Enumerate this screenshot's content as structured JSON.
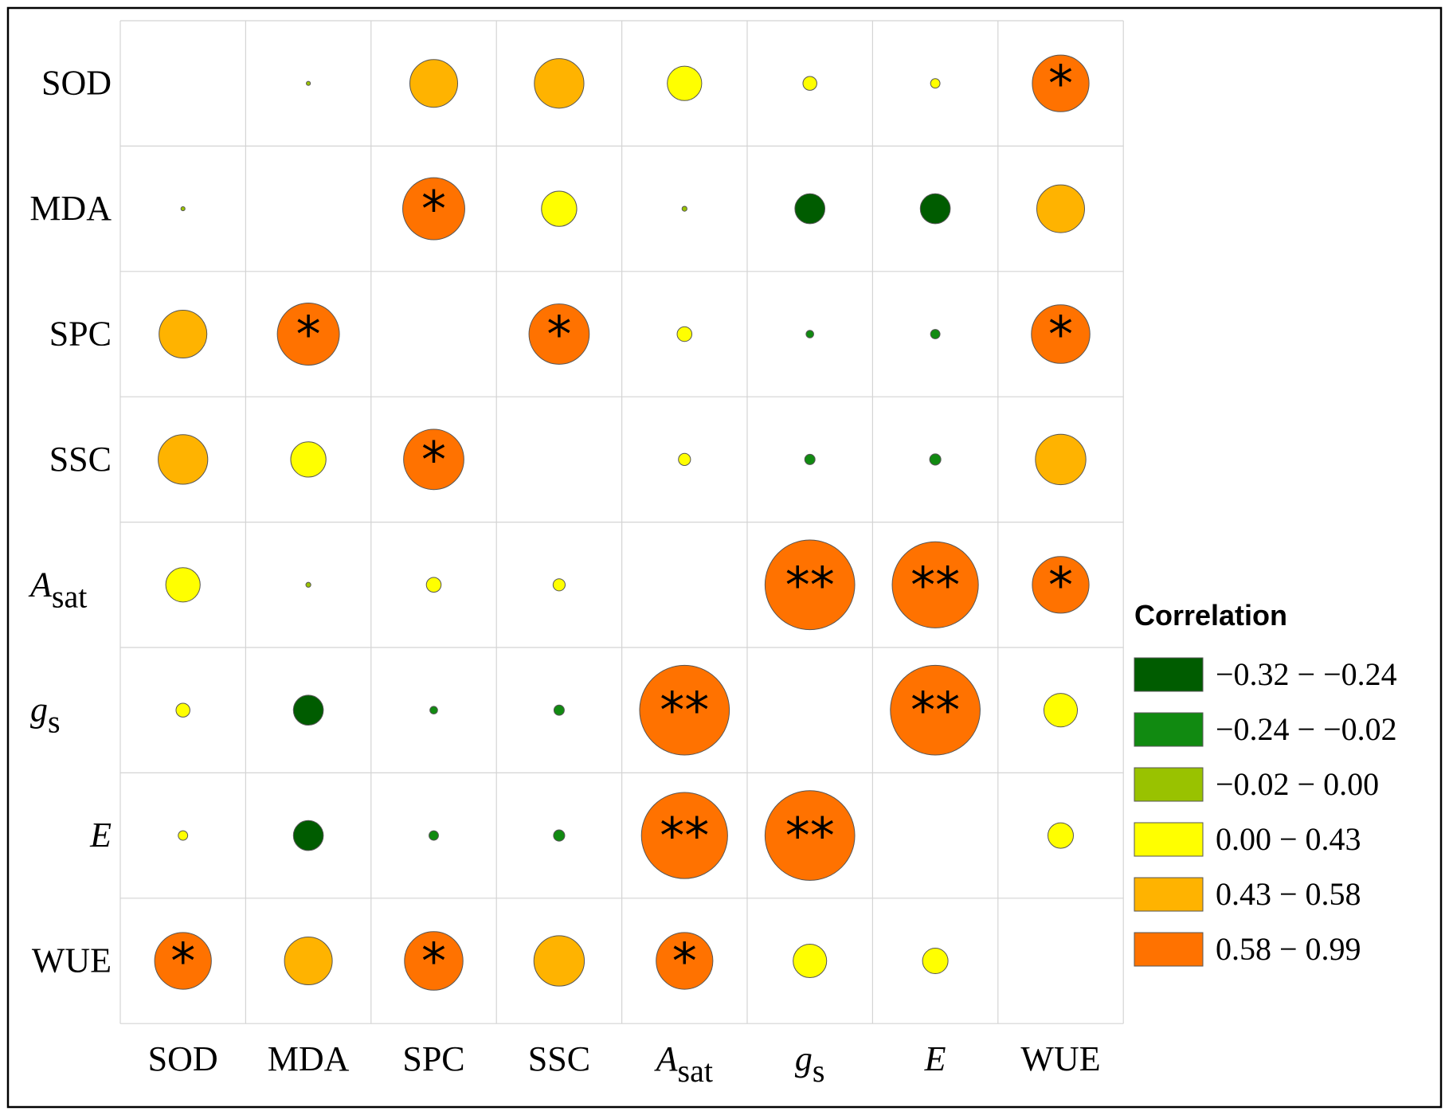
{
  "chart_data": {
    "type": "heatmap",
    "variables": [
      {
        "base": "SOD",
        "sub": "",
        "italic": false
      },
      {
        "base": "MDA",
        "sub": "",
        "italic": false
      },
      {
        "base": "SPC",
        "sub": "",
        "italic": false
      },
      {
        "base": "SSC",
        "sub": "",
        "italic": false
      },
      {
        "base": "A",
        "sub": "sat",
        "italic": true
      },
      {
        "base": "g",
        "sub": "s",
        "italic": true
      },
      {
        "base": "E",
        "sub": "",
        "italic": true
      },
      {
        "base": "WUE",
        "sub": "",
        "italic": false
      }
    ],
    "matrix": [
      [
        null,
        -0.01,
        0.5,
        0.52,
        0.35,
        0.12,
        0.07,
        0.6
      ],
      [
        -0.01,
        null,
        0.66,
        0.36,
        -0.02,
        -0.3,
        -0.3,
        0.5
      ],
      [
        0.5,
        0.66,
        null,
        0.64,
        0.13,
        -0.05,
        -0.07,
        0.62
      ],
      [
        0.52,
        0.36,
        0.64,
        null,
        0.1,
        -0.08,
        -0.09,
        0.53
      ],
      [
        0.35,
        -0.02,
        0.13,
        0.1,
        null,
        0.97,
        0.93,
        0.6
      ],
      [
        0.12,
        -0.3,
        -0.05,
        -0.08,
        0.97,
        null,
        0.97,
        0.34
      ],
      [
        0.07,
        -0.3,
        -0.07,
        -0.09,
        0.93,
        0.97,
        null,
        0.25
      ],
      [
        0.6,
        0.5,
        0.62,
        0.53,
        0.6,
        0.34,
        0.25,
        null
      ]
    ],
    "significance": [
      [
        "",
        "",
        "",
        "",
        "",
        "",
        "",
        "*"
      ],
      [
        "",
        "",
        "*",
        "",
        "",
        "",
        "",
        ""
      ],
      [
        "",
        "*",
        "",
        "*",
        "",
        "",
        "",
        "*"
      ],
      [
        "",
        "",
        "*",
        "",
        "",
        "",
        "",
        ""
      ],
      [
        "",
        "",
        "",
        "",
        "",
        "**",
        "**",
        "*"
      ],
      [
        "",
        "",
        "",
        "",
        "**",
        "",
        "**",
        ""
      ],
      [
        "",
        "",
        "",
        "",
        "**",
        "**",
        "",
        ""
      ],
      [
        "*",
        "",
        "*",
        "",
        "*",
        "",
        "",
        ""
      ]
    ],
    "legend": {
      "title": "Correlation",
      "placement": "right",
      "bins": [
        {
          "label": "−0.32 − −0.24",
          "min": -0.32,
          "max": -0.24,
          "color": "#005C00"
        },
        {
          "label": "−0.24 − −0.02",
          "min": -0.24,
          "max": -0.02,
          "color": "#118A11"
        },
        {
          "label": "−0.02 − 0.00",
          "min": -0.02,
          "max": 0.0,
          "color": "#99C200"
        },
        {
          "label": "0.00 − 0.43",
          "min": 0.0,
          "max": 0.43,
          "color": "#FFFF00"
        },
        {
          "label": "0.43 − 0.58",
          "min": 0.43,
          "max": 0.58,
          "color": "#FFB300"
        },
        {
          "label": "0.58 − 0.99",
          "min": 0.58,
          "max": 0.99,
          "color": "#FF7200"
        }
      ]
    },
    "grid": true
  }
}
